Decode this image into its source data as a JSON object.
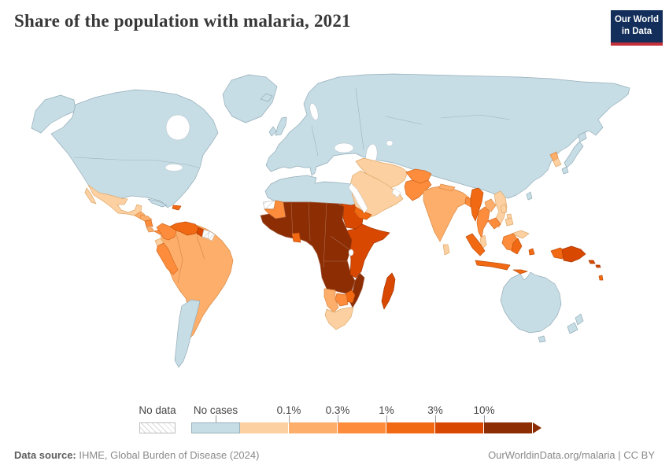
{
  "header": {
    "title": "Share of the population with malaria, 2021",
    "logo_line1": "Our World",
    "logo_line2": "in Data",
    "logo_bg": "#132e5a",
    "logo_red": "#c4303a"
  },
  "legend": {
    "no_data_label": "No data",
    "bar_segments": [
      {
        "bin": "no_cases",
        "label": "No cases"
      },
      {
        "bin": "bin1",
        "right_label": "0.1%"
      },
      {
        "bin": "bin2",
        "right_label": "0.3%"
      },
      {
        "bin": "bin3",
        "right_label": "1%"
      },
      {
        "bin": "bin4",
        "right_label": "3%"
      },
      {
        "bin": "bin5",
        "right_label": "10%"
      },
      {
        "bin": "bin6",
        "arrow": true
      }
    ]
  },
  "map": {
    "ocean_color": "#ffffff",
    "bins": {
      "no_data": {
        "label": "No data",
        "pattern": "hatch",
        "color": "#ffffff",
        "stroke": "#c4c4c4"
      },
      "no_cases": {
        "label": "No cases",
        "color": "#c7dde5",
        "stroke": "#94adb9"
      },
      "bin1": {
        "label": "<0.1%",
        "color": "#fdd0a2",
        "stroke": "#dca96a"
      },
      "bin2": {
        "label": "0.1%–0.3%",
        "color": "#fdae6b",
        "stroke": "#da8a43"
      },
      "bin3": {
        "label": "0.3%–1%",
        "color": "#fd8d3c",
        "stroke": "#d4691f"
      },
      "bin4": {
        "label": "1%–3%",
        "color": "#f16913",
        "stroke": "#c14f08"
      },
      "bin5": {
        "label": "3%–10%",
        "color": "#d94801",
        "stroke": "#a83700"
      },
      "bin6": {
        "label": ">10%",
        "color": "#8c2d04",
        "stroke": "#a05a3c"
      }
    },
    "regions": {
      "greenland": "no_cases",
      "alaska": "no_cases",
      "canada-usa": "no_cases",
      "cuba": "no_cases",
      "baja": "bin1",
      "mexico": "bin1",
      "guatemala": "bin2",
      "honduras": "bin2",
      "nicaragua": "bin3",
      "costa-rica": "bin2",
      "panama": "bin3",
      "hispaniola": "bin4",
      "brazil-bolivia": "bin2",
      "colombia": "bin3",
      "venezuela": "bin4",
      "guyana": "bin5",
      "suriname": "no_data",
      "french-guiana": "no_data",
      "ecuador": "bin1",
      "peru": "bin3",
      "argentina-chile": "no_cases",
      "eurasia": "no_cases",
      "uk": "no_cases",
      "ireland": "no_cases",
      "iceland": "no_cases",
      "japan-hokkaido": "no_cases",
      "japan-honshu": "no_cases",
      "japan-kyushu": "no_cases",
      "taiwan": "no_cases",
      "north-korea": "bin2",
      "south-korea": "bin1",
      "north-africa": "no_cases",
      "western-sahara": "no_data",
      "mauritania": "bin3",
      "west-central-africa": "bin6",
      "ghana": "bin4",
      "sudan": "bin5",
      "horn-east-africa": "bin5",
      "mozambique": "bin6",
      "zimbabwe": "bin4",
      "botswana": "bin3",
      "namibia": "bin2",
      "south-africa": "bin1",
      "madagascar": "bin5",
      "iran-iraq": "bin1",
      "saudi-peninsula": "bin1",
      "yemen": "bin4",
      "afghanistan": "bin3",
      "pakistan": "bin3",
      "india": "bin2",
      "nepal": "bin2",
      "bangladesh": "bin3",
      "sri-lanka": "bin1",
      "myanmar": "bin4",
      "thailand": "bin3",
      "laos": "bin2",
      "vietnam": "bin1",
      "cambodia": "bin3",
      "malaysia-peninsula": "bin1",
      "malaysia-borneo": "bin1",
      "kalimantan": "bin3",
      "sumatra": "bin4",
      "java": "bin4",
      "sulawesi": "bin4",
      "lesser-sunda": "bin4",
      "maluku": "bin4",
      "west-papua": "bin4",
      "philippines-luzon": "bin1",
      "philippines-visayas": "bin1",
      "philippines-mindanao": "bin1",
      "png": "bin5",
      "solomon-1": "bin5",
      "solomon-2": "bin5",
      "vanuatu": "bin4",
      "australia": "no_cases",
      "tasmania": "no_cases",
      "nz-north": "no_cases",
      "nz-south": "no_cases"
    }
  },
  "chart_data": {
    "type": "heatmap",
    "subtype": "choropleth-world-map",
    "title": "Share of the population with malaria, 2021",
    "unit": "% of population",
    "year": 2021,
    "legend_position": "bottom",
    "bins": [
      "No data",
      "No cases",
      "<0.1%",
      "0.1%–0.3%",
      "0.3%–1%",
      "1%–3%",
      "3%–10%",
      ">10%"
    ],
    "values": {
      "Canada": "No cases",
      "United States": "No cases",
      "Greenland": "No cases",
      "Mexico": "<0.1%",
      "Guatemala": "0.1%–0.3%",
      "Honduras": "0.1%–0.3%",
      "Nicaragua": "0.3%–1%",
      "Costa Rica": "0.1%–0.3%",
      "Panama": "0.3%–1%",
      "Cuba": "No cases",
      "Haiti / Dominican Republic": "1%–3%",
      "Colombia": "0.3%–1%",
      "Venezuela": "1%–3%",
      "Guyana": "3%–10%",
      "Suriname": "No data",
      "French Guiana": "No data",
      "Ecuador": "<0.1%",
      "Peru": "0.3%–1%",
      "Brazil": "0.1%–0.3%",
      "Bolivia": "0.1%–0.3%",
      "Paraguay": "No cases",
      "Argentina": "No cases",
      "Chile": "No cases",
      "Europe": "No cases",
      "Russia": "No cases",
      "Turkey": "No cases",
      "Central Asia": "No cases",
      "China": "No cases",
      "Mongolia": "No cases",
      "Japan": "No cases",
      "North Korea": "0.1%–0.3%",
      "South Korea": "<0.1%",
      "Morocco": "No cases",
      "Algeria": "No cases",
      "Tunisia": "No cases",
      "Libya": "No cases",
      "Egypt": "No cases",
      "Western Sahara": "No data",
      "Mauritania": "0.3%–1%",
      "Senegal–Chad Sahel belt": ">10%",
      "Ghana": "1%–3%",
      "Nigeria": ">10%",
      "DR Congo & Central Africa": ">10%",
      "Sudan": "3%–10%",
      "Ethiopia": "3%–10%",
      "Somalia": "3%–10%",
      "Kenya": "3%–10%",
      "Tanzania": "3%–10%",
      "Angola": ">10%",
      "Zambia": ">10%",
      "Mozambique": ">10%",
      "Zimbabwe": "1%–3%",
      "Botswana": "0.3%–1%",
      "Namibia": "0.1%–0.3%",
      "South Africa": "<0.1%",
      "Madagascar": "3%–10%",
      "Saudi Arabia": "<0.1%",
      "Iraq": "<0.1%",
      "Iran": "<0.1%",
      "Oman": "<0.1%",
      "Yemen": "1%–3%",
      "Afghanistan": "0.3%–1%",
      "Pakistan": "0.3%–1%",
      "India": "0.1%–0.3%",
      "Nepal": "0.1%–0.3%",
      "Bangladesh": "0.3%–1%",
      "Sri Lanka": "<0.1%",
      "Myanmar": "1%–3%",
      "Thailand": "0.3%–1%",
      "Laos": "0.1%–0.3%",
      "Vietnam": "<0.1%",
      "Cambodia": "0.3%–1%",
      "Malaysia": "<0.1%",
      "Indonesia": "1%–3%",
      "Indonesian Borneo": "0.3%–1%",
      "Philippines": "<0.1%",
      "Papua New Guinea": "3%–10%",
      "Solomon Islands": "3%–10%",
      "Vanuatu": "1%–3%",
      "Australia": "No cases",
      "New Zealand": "No cases"
    }
  },
  "footer": {
    "source_label": "Data source:",
    "source_text": " IHME, Global Burden of Disease (2024)",
    "right_text": "OurWorldinData.org/malaria | CC BY"
  }
}
